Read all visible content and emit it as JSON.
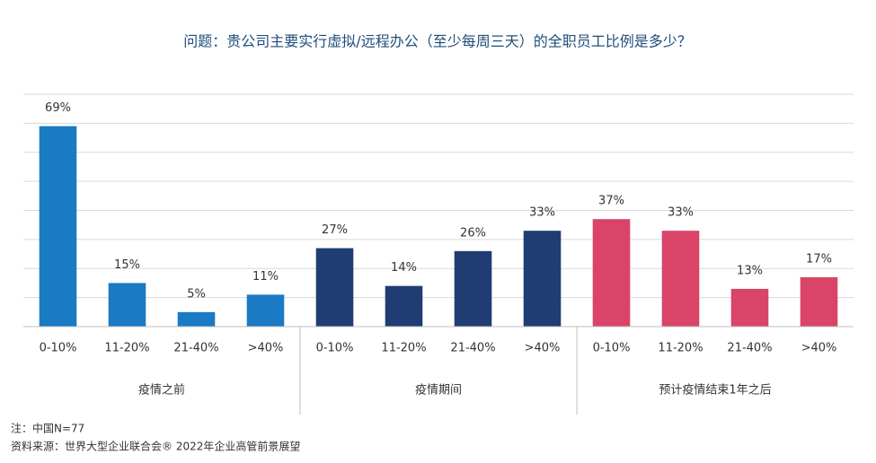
{
  "chart_data": {
    "type": "bar",
    "title": "问题：贵公司主要实行虚拟/远程办公（至少每周三天）的全职员工比例是多少？",
    "groups": [
      {
        "name": "疫情之前",
        "color": "#1a7ac4",
        "categories": [
          "0-10%",
          "11-20%",
          "21-40%",
          ">40%"
        ],
        "values": [
          69,
          15,
          5,
          11
        ],
        "value_labels": [
          "69%",
          "15%",
          "5%",
          "11%"
        ]
      },
      {
        "name": "疫情期间",
        "color": "#1f3d73",
        "categories": [
          "0-10%",
          "11-20%",
          "21-40%",
          ">40%"
        ],
        "values": [
          27,
          14,
          26,
          33
        ],
        "value_labels": [
          "27%",
          "14%",
          "26%",
          "33%"
        ]
      },
      {
        "name": "预计疫情结束1年之后",
        "color": "#d94468",
        "categories": [
          "0-10%",
          "11-20%",
          "21-40%",
          ">40%"
        ],
        "values": [
          37,
          33,
          13,
          17
        ],
        "value_labels": [
          "37%",
          "33%",
          "13%",
          "17%"
        ]
      }
    ],
    "ylim": [
      0,
      80
    ],
    "yticks": [
      0,
      10,
      20,
      30,
      40,
      50,
      60,
      70,
      80
    ],
    "grid": true,
    "notes": [
      "注：中国N=77",
      "资料来源：世界大型企业联合会® 2022年企业高管前景展望"
    ]
  }
}
